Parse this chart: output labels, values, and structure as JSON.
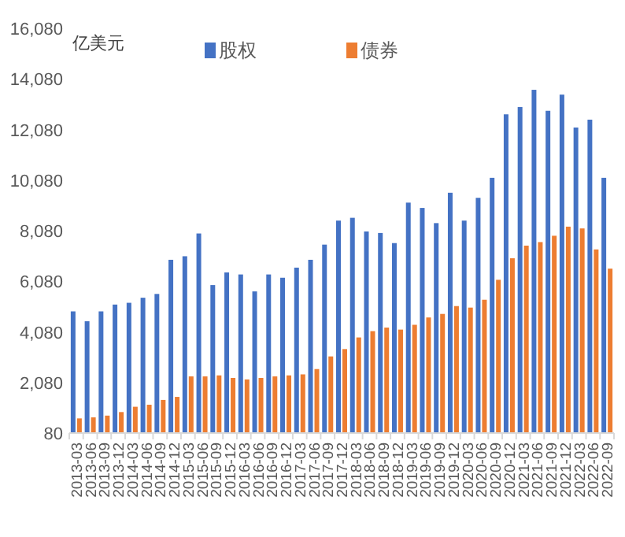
{
  "chart_data": {
    "type": "bar",
    "ylabel": "亿美元",
    "legend": "top",
    "grid": false,
    "categories": [
      "2013-03",
      "2013-06",
      "2013-09",
      "2013-12",
      "2014-03",
      "2014-06",
      "2014-09",
      "2014-12",
      "2015-03",
      "2015-06",
      "2015-09",
      "2015-12",
      "2016-03",
      "2016-06",
      "2016-09",
      "2016-12",
      "2017-03",
      "2017-06",
      "2017-09",
      "2017-12",
      "2018-03",
      "2018-06",
      "2018-09",
      "2018-12",
      "2019-03",
      "2019-06",
      "2019-09",
      "2019-12",
      "2020-03",
      "2020-06",
      "2020-09",
      "2020-12",
      "2021-03",
      "2021-06",
      "2021-09",
      "2021-12",
      "2022-03",
      "2022-06",
      "2022-09"
    ],
    "series": [
      {
        "name": "股权",
        "color": "#4472c4",
        "values": [
          4890,
          4500,
          4890,
          5160,
          5230,
          5430,
          5580,
          6930,
          7070,
          7970,
          5930,
          6430,
          6350,
          5680,
          6350,
          6220,
          6620,
          6930,
          7530,
          8480,
          8590,
          8050,
          7990,
          7590,
          9190,
          8980,
          8380,
          9580,
          8480,
          9380,
          10170,
          12680,
          12970,
          13650,
          12820,
          13460,
          12160,
          12470,
          10170
        ]
      },
      {
        "name": "债券",
        "color": "#ed7d31",
        "values": [
          660,
          700,
          770,
          910,
          1120,
          1200,
          1390,
          1510,
          2320,
          2320,
          2360,
          2260,
          2200,
          2260,
          2320,
          2360,
          2400,
          2610,
          3110,
          3400,
          3860,
          4110,
          4250,
          4170,
          4360,
          4650,
          4790,
          5100,
          5040,
          5350,
          6140,
          6990,
          7490,
          7630,
          7880,
          8240,
          8170,
          7340,
          6580
        ]
      }
    ],
    "ylim": [
      80,
      16080
    ],
    "yticks": [
      80,
      {
        "value": 2080,
        "label": "2,080"
      },
      {
        "value": 4080,
        "label": "4,080"
      },
      {
        "value": 6080,
        "label": "6,080"
      },
      {
        "value": 8080,
        "label": "8,080"
      },
      {
        "value": 10080,
        "label": "10,080"
      },
      {
        "value": 12080,
        "label": "12,080"
      },
      {
        "value": 14080,
        "label": "14,080"
      },
      {
        "value": 16080,
        "label": "16,080"
      }
    ]
  }
}
